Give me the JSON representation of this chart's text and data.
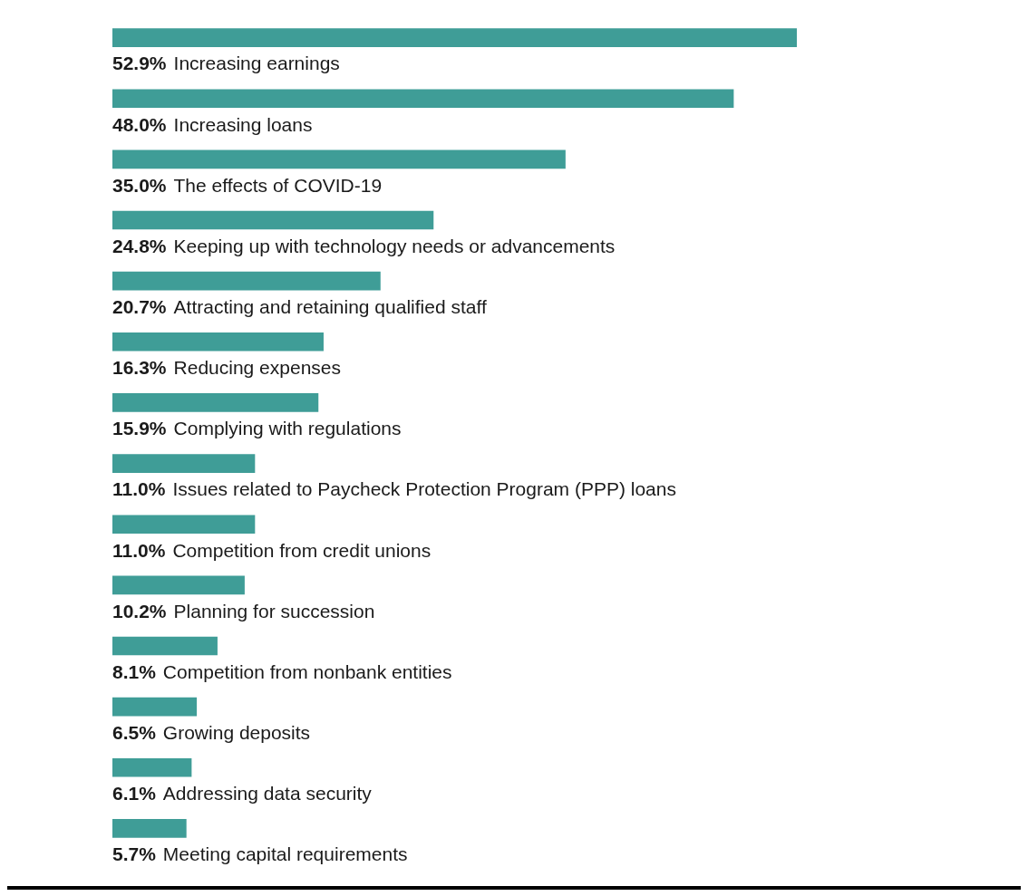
{
  "chart_data": {
    "type": "bar",
    "orientation": "horizontal",
    "categories": [
      "Increasing earnings",
      "Increasing loans",
      "The effects of COVID-19",
      "Keeping up with technology needs or advancements",
      "Attracting and retaining qualified staff",
      "Reducing expenses",
      "Complying with regulations",
      "Issues related to Paycheck Protection Program (PPP) loans",
      "Competition from credit unions",
      "Planning for succession",
      "Competition from nonbank entities",
      "Growing deposits",
      "Addressing data security",
      "Meeting capital requirements"
    ],
    "values": [
      52.9,
      48.0,
      35.0,
      24.8,
      20.7,
      16.3,
      15.9,
      11.0,
      11.0,
      10.2,
      8.1,
      6.5,
      6.1,
      5.7
    ],
    "value_labels": [
      "52.9%",
      "48.0%",
      "35.0%",
      "24.8%",
      "20.7%",
      "16.3%",
      "15.9%",
      "11.0%",
      "11.0%",
      "10.2%",
      "8.1%",
      "6.5%",
      "6.1%",
      "5.7%"
    ],
    "color": "#3f9d97",
    "legend": false
  }
}
